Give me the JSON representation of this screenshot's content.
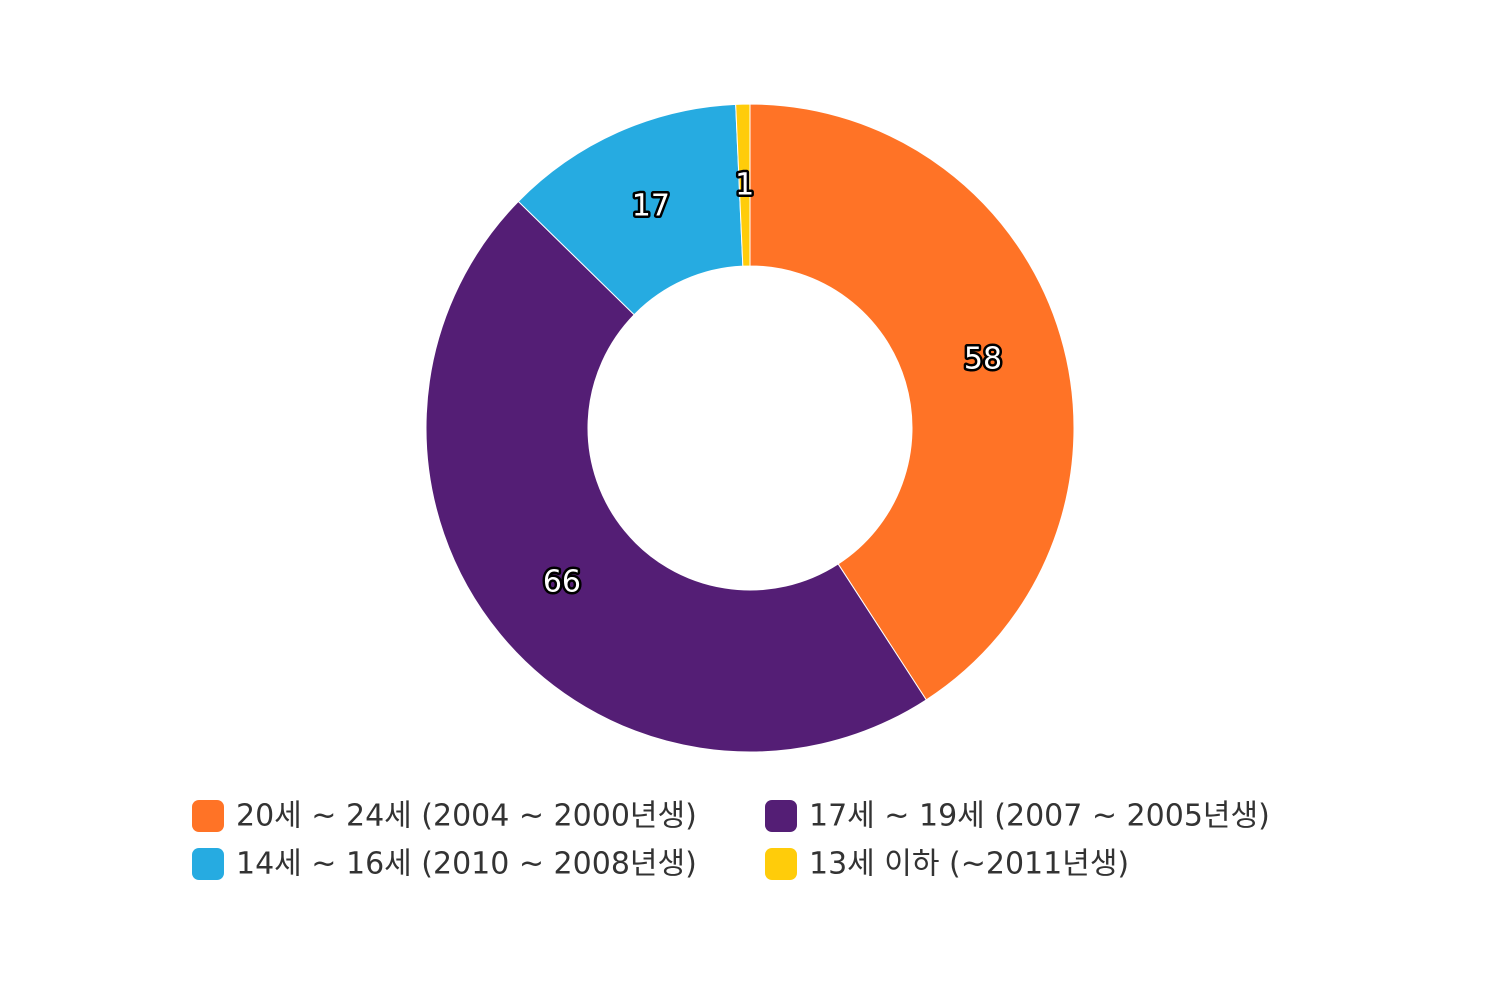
{
  "chart_data": {
    "type": "pie",
    "donut": true,
    "categories": [
      "20세 ~ 24세 (2004 ~ 2000년생)",
      "17세 ~ 19세 (2007 ~ 2005년생)",
      "14세 ~ 16세 (2010 ~ 2008년생)",
      "13세 이하 (~2011년생)"
    ],
    "values": [
      58,
      66,
      17,
      1
    ],
    "data_labels": [
      "58",
      "66",
      "17",
      "1"
    ],
    "colors": [
      "#ff7326",
      "#541e75",
      "#26abe1",
      "#ffcc0a"
    ],
    "legend": {
      "placement": "bottom",
      "items": [
        {
          "label": "20세 ~ 24세 (2004 ~ 2000년생)",
          "color": "#ff7326"
        },
        {
          "label": "17세 ~ 19세 (2007 ~ 2005년생)",
          "color": "#541e75"
        },
        {
          "label": "14세 ~ 16세 (2010 ~ 2008년생)",
          "color": "#26abe1"
        },
        {
          "label": "13세 이하 (~2011년생)",
          "color": "#ffcc0a"
        }
      ]
    },
    "title": "",
    "start": "12 o'clock, clockwise"
  }
}
